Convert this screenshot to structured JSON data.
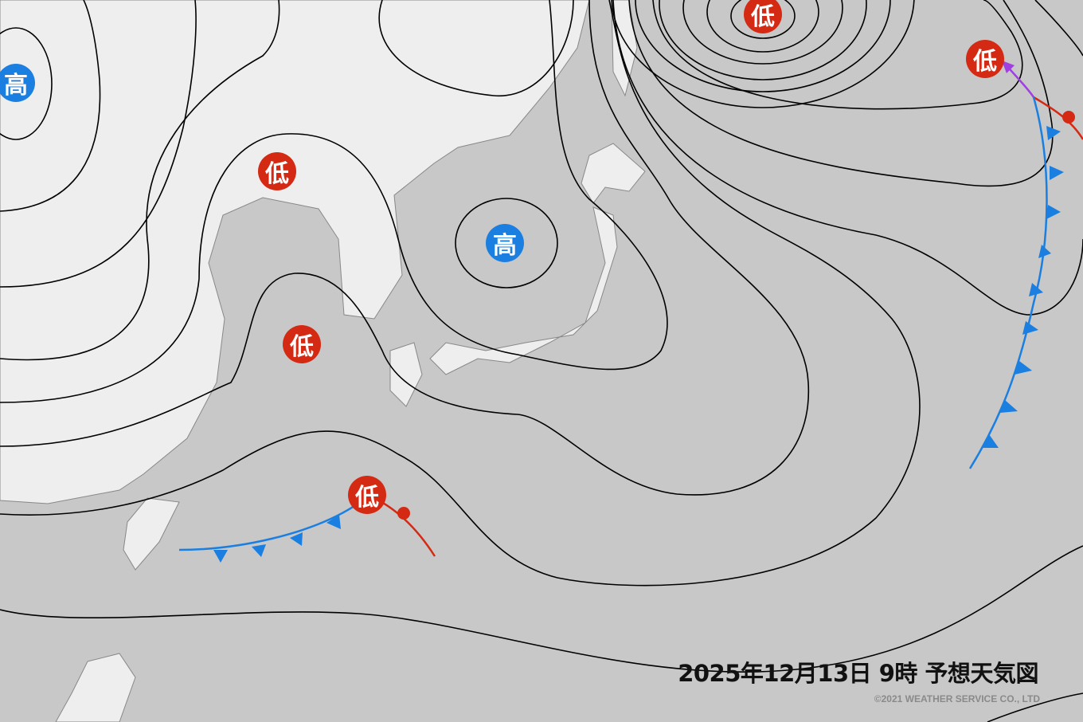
{
  "title": "2025年12月13日 9時 予想天気図",
  "copyright": "©2021 WEATHER SERVICE CO., LTD",
  "colors": {
    "sea": "#c8c8c8",
    "land": "#eeeeee",
    "high": "#1a7fe0",
    "low": "#d42a14",
    "cold_front": "#1a7fe0",
    "warm_front": "#d42a14",
    "occluded_front": "#a040e0",
    "isobar": "#000000"
  },
  "pressure_systems": [
    {
      "type": "high",
      "label": "高",
      "name": "high-west"
    },
    {
      "type": "low",
      "label": "低",
      "name": "low-north"
    },
    {
      "type": "low",
      "label": "低",
      "name": "low-northeast"
    },
    {
      "type": "low",
      "label": "低",
      "name": "low-bohai"
    },
    {
      "type": "high",
      "label": "高",
      "name": "high-japan-sea"
    },
    {
      "type": "low",
      "label": "低",
      "name": "low-yellow-sea"
    },
    {
      "type": "low",
      "label": "低",
      "name": "low-okinawa"
    }
  ]
}
